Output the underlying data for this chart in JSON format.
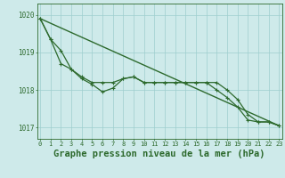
{
  "background_color": "#ceeaea",
  "grid_color": "#9ecece",
  "line_color": "#2d6a2d",
  "xlabel": "Graphe pression niveau de la mer (hPa)",
  "xlabel_fontsize": 7.5,
  "yticks": [
    1017,
    1018,
    1019,
    1020
  ],
  "xticks": [
    0,
    1,
    2,
    3,
    4,
    5,
    6,
    7,
    8,
    9,
    10,
    11,
    12,
    13,
    14,
    15,
    16,
    17,
    18,
    19,
    20,
    21,
    22,
    23
  ],
  "ylim": [
    1016.7,
    1020.3
  ],
  "xlim": [
    -0.3,
    23.3
  ],
  "line1_x": [
    0,
    23
  ],
  "line1_y": [
    1019.9,
    1017.05
  ],
  "line2_x": [
    0,
    1,
    2,
    3,
    4,
    5,
    6,
    7,
    8,
    9,
    10,
    11,
    12,
    13,
    14,
    15,
    16,
    17,
    18,
    19,
    20,
    21,
    22,
    23
  ],
  "line2_y": [
    1019.9,
    1019.35,
    1018.7,
    1018.55,
    1018.35,
    1018.2,
    1018.2,
    1018.2,
    1018.3,
    1018.35,
    1018.2,
    1018.2,
    1018.2,
    1018.2,
    1018.2,
    1018.2,
    1018.2,
    1018.2,
    1018.0,
    1017.75,
    1017.35,
    1017.15,
    1017.15,
    1017.05
  ],
  "line3_x": [
    0,
    1,
    2,
    3,
    4,
    5,
    6,
    7,
    8,
    9,
    10,
    11,
    12,
    13,
    14,
    15,
    16,
    17,
    18,
    19,
    20,
    21,
    22,
    23
  ],
  "line3_y": [
    1019.9,
    1019.35,
    1019.05,
    1018.55,
    1018.3,
    1018.15,
    1017.95,
    1018.05,
    1018.3,
    1018.35,
    1018.2,
    1018.2,
    1018.2,
    1018.2,
    1018.2,
    1018.2,
    1018.2,
    1018.0,
    1017.8,
    1017.55,
    1017.2,
    1017.15,
    1017.15,
    1017.05
  ]
}
